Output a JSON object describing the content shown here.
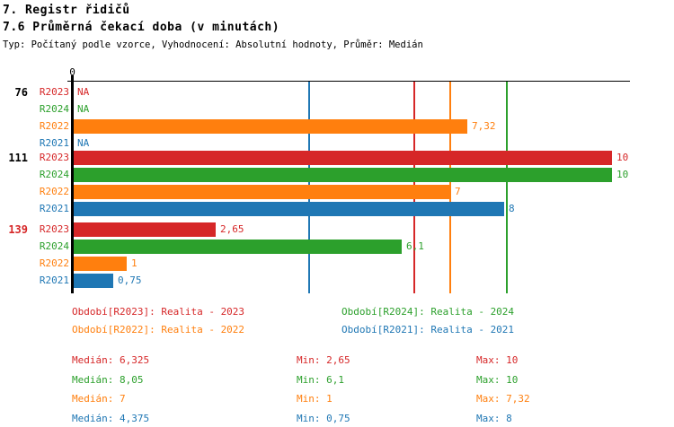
{
  "header": {
    "title": "7. Registr řidičů",
    "subtitle": "7.6 Průměrná čekací doba (v minutách)",
    "meta": "Typ: Počítaný podle vzorce, Vyhodnocení: Absolutní hodnoty, Průměr: Medián"
  },
  "colors": {
    "R2023": "#d62728",
    "R2024": "#2ca02c",
    "R2022": "#ff7f0e",
    "R2021": "#1f77b4",
    "axis": "#000000",
    "alert": "#d62728"
  },
  "chart_data": {
    "type": "bar",
    "orientation": "horizontal",
    "title": "7.6 Průměrná čekací doba (v minutách)",
    "xlabel": "",
    "ylabel": "",
    "xlim": [
      0,
      10.3
    ],
    "x_ticks": [
      {
        "value": 0,
        "label": "0"
      }
    ],
    "grid": "median-lines-only",
    "series_order": [
      "R2023",
      "R2024",
      "R2022",
      "R2021"
    ],
    "groups": [
      {
        "label": "76",
        "alert": false,
        "rows": [
          {
            "series": "R2023",
            "value": null,
            "display": "NA"
          },
          {
            "series": "R2024",
            "value": null,
            "display": "NA"
          },
          {
            "series": "R2022",
            "value": 7.32,
            "display": "7,32"
          },
          {
            "series": "R2021",
            "value": null,
            "display": "NA"
          }
        ]
      },
      {
        "label": "111",
        "alert": false,
        "rows": [
          {
            "series": "R2023",
            "value": 10,
            "display": "10"
          },
          {
            "series": "R2024",
            "value": 10,
            "display": "10"
          },
          {
            "series": "R2022",
            "value": 7,
            "display": "7"
          },
          {
            "series": "R2021",
            "value": 8,
            "display": "8"
          }
        ]
      },
      {
        "label": "139",
        "alert": true,
        "rows": [
          {
            "series": "R2023",
            "value": 2.65,
            "display": "2,65"
          },
          {
            "series": "R2024",
            "value": 6.1,
            "display": "6,1"
          },
          {
            "series": "R2022",
            "value": 1,
            "display": "1"
          },
          {
            "series": "R2021",
            "value": 0.75,
            "display": "0,75"
          }
        ]
      }
    ],
    "median_lines": [
      {
        "series": "R2023",
        "value": 6.325
      },
      {
        "series": "R2024",
        "value": 8.05
      },
      {
        "series": "R2022",
        "value": 7
      },
      {
        "series": "R2021",
        "value": 4.375
      }
    ]
  },
  "legend": [
    {
      "series": "R2023",
      "text": "Období[R2023]: Realita - 2023"
    },
    {
      "series": "R2024",
      "text": "Období[R2024]: Realita - 2024"
    },
    {
      "series": "R2022",
      "text": "Období[R2022]: Realita - 2022"
    },
    {
      "series": "R2021",
      "text": "Období[R2021]: Realita - 2021"
    }
  ],
  "stats": [
    {
      "series": "R2023",
      "median": "Medián: 6,325",
      "min": "Min: 2,65",
      "max": "Max: 10"
    },
    {
      "series": "R2024",
      "median": "Medián: 8,05",
      "min": "Min: 6,1",
      "max": "Max: 10"
    },
    {
      "series": "R2022",
      "median": "Medián: 7",
      "min": "Min: 1",
      "max": "Max: 7,32"
    },
    {
      "series": "R2021",
      "median": "Medián: 4,375",
      "min": "Min: 0,75",
      "max": "Max: 8"
    }
  ]
}
